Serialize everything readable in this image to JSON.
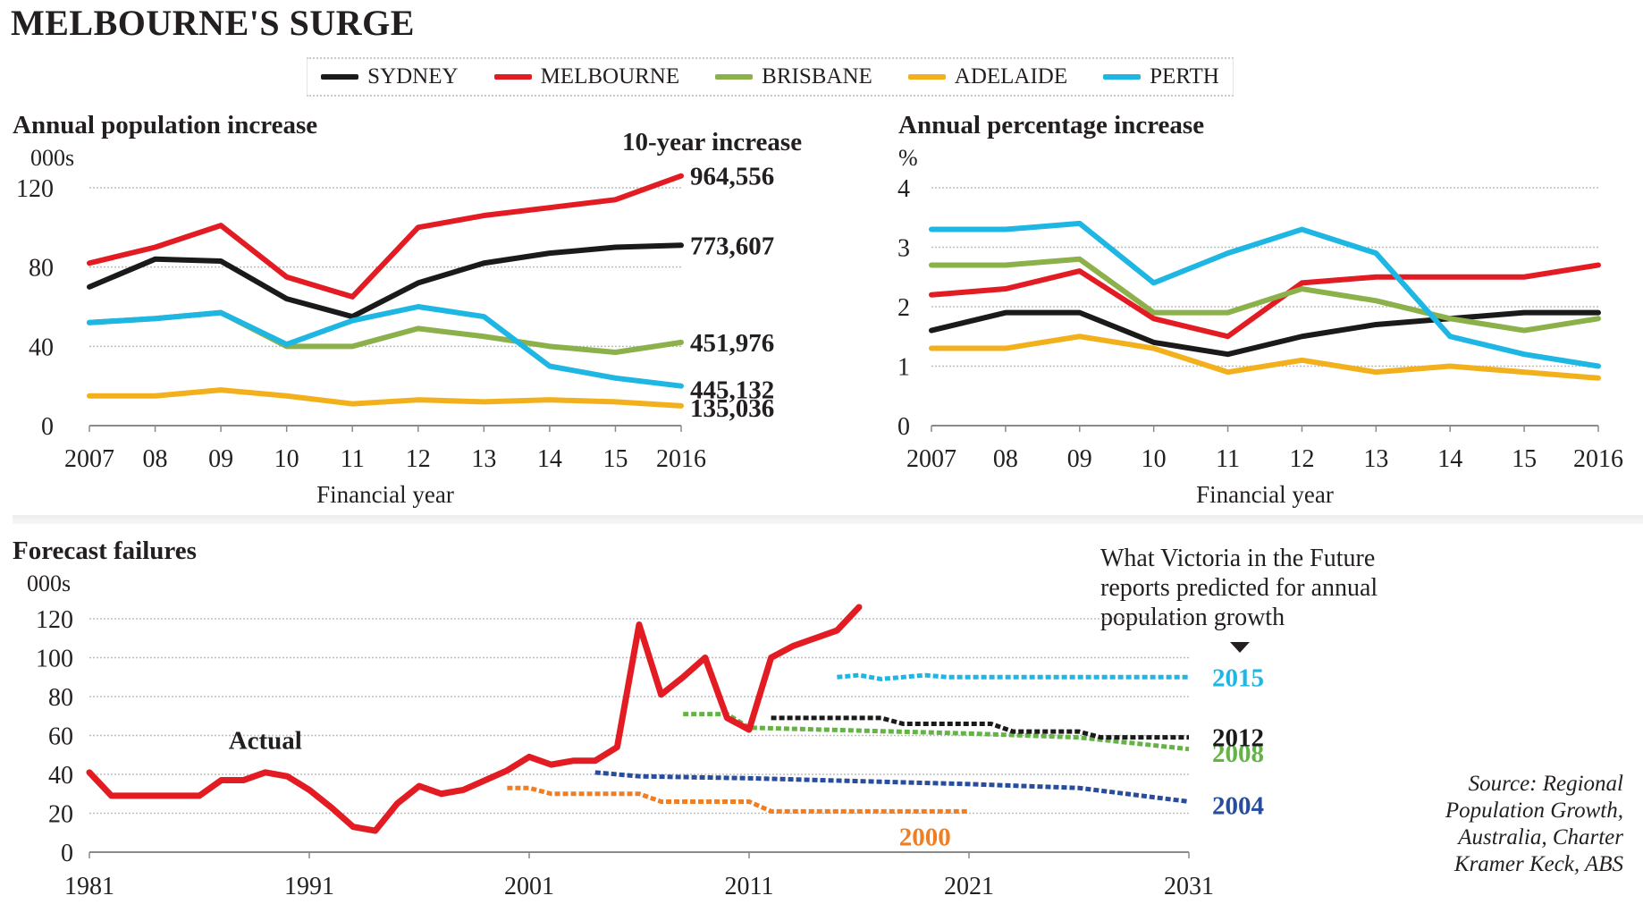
{
  "title": "MELBOURNE'S SURGE",
  "legend": [
    {
      "label": "SYDNEY",
      "color": "#1a1a1a"
    },
    {
      "label": "MELBOURNE",
      "color": "#e31b23"
    },
    {
      "label": "BRISBANE",
      "color": "#8cb04a"
    },
    {
      "label": "ADELAIDE",
      "color": "#f2b11c"
    },
    {
      "label": "PERTH",
      "color": "#1eb6e3"
    }
  ],
  "chart_data": [
    {
      "id": "annual-population-increase",
      "type": "line",
      "title": "Annual population increase",
      "unit_label": "000s",
      "xlabel": "Financial year",
      "ylabel": "000s",
      "x": [
        2007,
        2008,
        2009,
        2010,
        2011,
        2012,
        2013,
        2014,
        2015,
        2016
      ],
      "x_tick_labels": [
        "2007",
        "08",
        "09",
        "10",
        "11",
        "12",
        "13",
        "14",
        "15",
        "2016"
      ],
      "ylim": [
        0,
        120
      ],
      "y_ticks": [
        0,
        40,
        80,
        120
      ],
      "grid": true,
      "end_annotation_title": "10-year increase",
      "series": [
        {
          "name": "SYDNEY",
          "color": "#1a1a1a",
          "values": [
            70,
            84,
            83,
            64,
            55,
            72,
            82,
            87,
            90,
            91
          ],
          "end_label": "773,607"
        },
        {
          "name": "MELBOURNE",
          "color": "#e31b23",
          "values": [
            82,
            90,
            101,
            75,
            65,
            100,
            106,
            110,
            114,
            126
          ],
          "end_label": "964,556"
        },
        {
          "name": "BRISBANE",
          "color": "#8cb04a",
          "values": [
            52,
            54,
            57,
            40,
            40,
            49,
            45,
            40,
            37,
            42
          ],
          "end_label": "451,976"
        },
        {
          "name": "ADELAIDE",
          "color": "#f2b11c",
          "values": [
            15,
            15,
            18,
            15,
            11,
            13,
            12,
            13,
            12,
            10
          ],
          "end_label": "135,036"
        },
        {
          "name": "PERTH",
          "color": "#1eb6e3",
          "values": [
            52,
            54,
            57,
            41,
            53,
            60,
            55,
            30,
            24,
            20
          ],
          "end_label": "445,132"
        }
      ]
    },
    {
      "id": "annual-percentage-increase",
      "type": "line",
      "title": "Annual percentage increase",
      "unit_label": "%",
      "xlabel": "Financial year",
      "ylabel": "%",
      "x": [
        2007,
        2008,
        2009,
        2010,
        2011,
        2012,
        2013,
        2014,
        2015,
        2016
      ],
      "x_tick_labels": [
        "2007",
        "08",
        "09",
        "10",
        "11",
        "12",
        "13",
        "14",
        "15",
        "2016"
      ],
      "ylim": [
        0,
        4
      ],
      "y_ticks": [
        0,
        1,
        2,
        3,
        4
      ],
      "grid": true,
      "series": [
        {
          "name": "SYDNEY",
          "color": "#1a1a1a",
          "values": [
            1.6,
            1.9,
            1.9,
            1.4,
            1.2,
            1.5,
            1.7,
            1.8,
            1.9,
            1.9
          ]
        },
        {
          "name": "MELBOURNE",
          "color": "#e31b23",
          "values": [
            2.2,
            2.3,
            2.6,
            1.8,
            1.5,
            2.4,
            2.5,
            2.5,
            2.5,
            2.7
          ]
        },
        {
          "name": "BRISBANE",
          "color": "#8cb04a",
          "values": [
            2.7,
            2.7,
            2.8,
            1.9,
            1.9,
            2.3,
            2.1,
            1.8,
            1.6,
            1.8
          ]
        },
        {
          "name": "ADELAIDE",
          "color": "#f2b11c",
          "values": [
            1.3,
            1.3,
            1.5,
            1.3,
            0.9,
            1.1,
            0.9,
            1.0,
            0.9,
            0.8
          ]
        },
        {
          "name": "PERTH",
          "color": "#1eb6e3",
          "values": [
            3.3,
            3.3,
            3.4,
            2.4,
            2.9,
            3.3,
            2.9,
            1.5,
            1.2,
            1.0
          ]
        }
      ]
    },
    {
      "id": "forecast-failures",
      "type": "line",
      "title": "Forecast failures",
      "unit_label": "000s",
      "xlabel": "",
      "ylabel": "000s",
      "xlim": [
        1981,
        2031
      ],
      "x_ticks": [
        1981,
        1991,
        2001,
        2011,
        2021,
        2031
      ],
      "ylim": [
        0,
        120
      ],
      "y_ticks": [
        0,
        20,
        40,
        60,
        80,
        100,
        120
      ],
      "grid": true,
      "actual_label": "Actual",
      "annotation": "What Victoria in the Future reports predicted for annual population growth",
      "actual": {
        "name": "Actual",
        "color": "#e31b23",
        "points": [
          [
            1981,
            41
          ],
          [
            1982,
            29
          ],
          [
            1983,
            29
          ],
          [
            1984,
            29
          ],
          [
            1985,
            29
          ],
          [
            1986,
            29
          ],
          [
            1987,
            37
          ],
          [
            1988,
            37
          ],
          [
            1989,
            41
          ],
          [
            1990,
            39
          ],
          [
            1991,
            32
          ],
          [
            1992,
            23
          ],
          [
            1993,
            13
          ],
          [
            1994,
            11
          ],
          [
            1995,
            25
          ],
          [
            1996,
            34
          ],
          [
            1997,
            30
          ],
          [
            1998,
            32
          ],
          [
            1999,
            37
          ],
          [
            2000,
            42
          ],
          [
            2001,
            49
          ],
          [
            2002,
            45
          ],
          [
            2003,
            47
          ],
          [
            2004,
            47
          ],
          [
            2005,
            54
          ],
          [
            2006,
            117
          ],
          [
            2007,
            81
          ],
          [
            2008,
            90
          ],
          [
            2009,
            100
          ],
          [
            2010,
            69
          ],
          [
            2011,
            63
          ],
          [
            2012,
            100
          ],
          [
            2013,
            106
          ],
          [
            2014,
            110
          ],
          [
            2015,
            114
          ],
          [
            2016,
            126
          ]
        ]
      },
      "forecasts": [
        {
          "name": "2000",
          "color": "#ef7f22",
          "points": [
            [
              2000,
              33
            ],
            [
              2001,
              33
            ],
            [
              2002,
              30
            ],
            [
              2006,
              30
            ],
            [
              2007,
              26
            ],
            [
              2011,
              26
            ],
            [
              2012,
              21
            ],
            [
              2021,
              21
            ]
          ]
        },
        {
          "name": "2004",
          "color": "#274d9c",
          "points": [
            [
              2004,
              41
            ],
            [
              2006,
              39
            ],
            [
              2011,
              38
            ],
            [
              2021,
              35
            ],
            [
              2026,
              33
            ],
            [
              2031,
              26
            ]
          ]
        },
        {
          "name": "2008",
          "color": "#63b445",
          "points": [
            [
              2008,
              71
            ],
            [
              2010,
              71
            ],
            [
              2011,
              64
            ],
            [
              2021,
              61
            ],
            [
              2026,
              59
            ],
            [
              2031,
              53
            ]
          ]
        },
        {
          "name": "2012",
          "color": "#1a1a1a",
          "points": [
            [
              2012,
              69
            ],
            [
              2017,
              69
            ],
            [
              2018,
              66
            ],
            [
              2022,
              66
            ],
            [
              2023,
              62
            ],
            [
              2026,
              62
            ],
            [
              2027,
              59
            ],
            [
              2031,
              59
            ]
          ]
        },
        {
          "name": "2015",
          "color": "#1eb6e3",
          "points": [
            [
              2015,
              90
            ],
            [
              2016,
              91
            ],
            [
              2017,
              89
            ],
            [
              2019,
              91
            ],
            [
              2020,
              90
            ],
            [
              2031,
              90
            ]
          ]
        }
      ]
    }
  ],
  "source": [
    "Source: Regional",
    "Population Growth,",
    "Australia, Charter",
    "Kramer Keck, ABS"
  ]
}
